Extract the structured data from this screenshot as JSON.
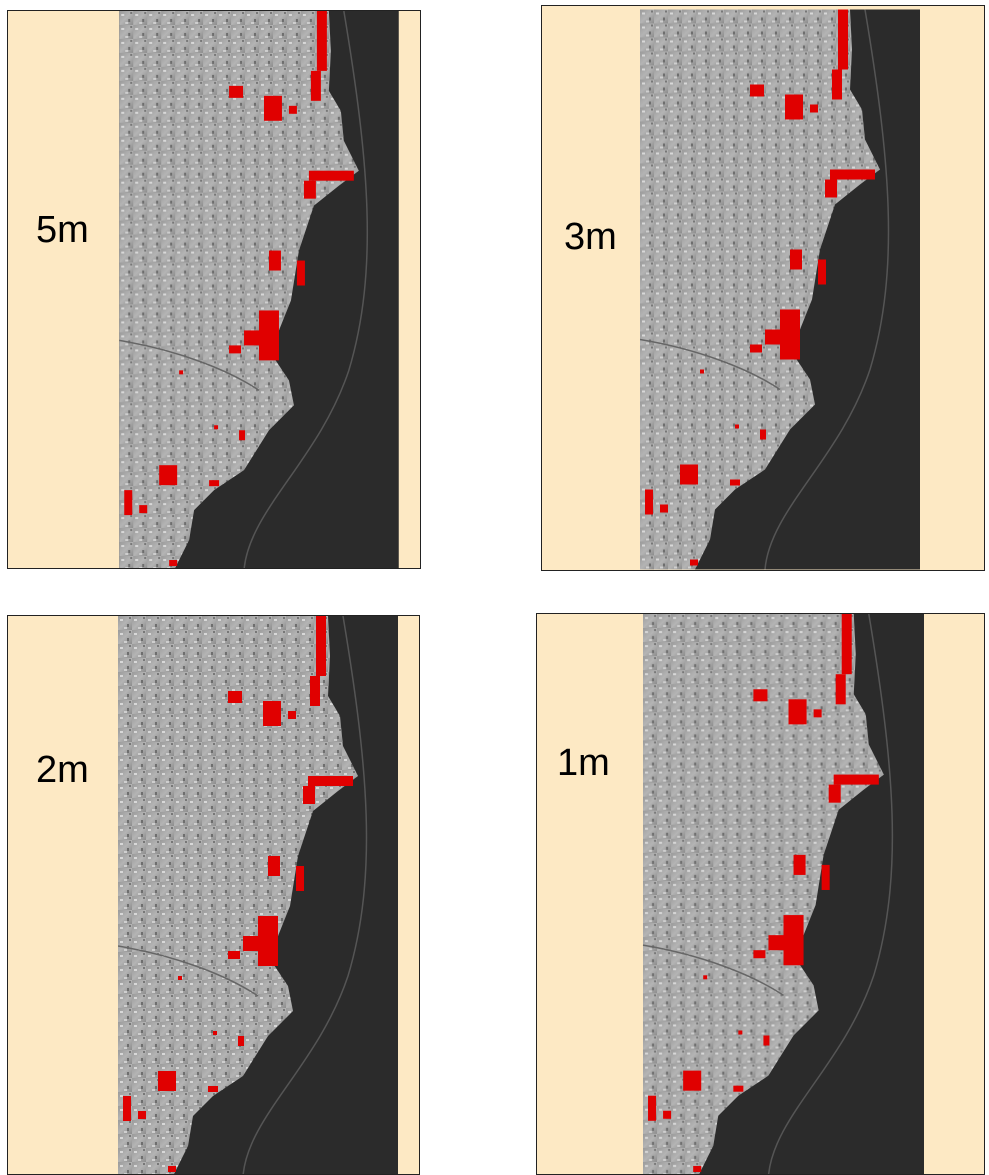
{
  "panels": [
    {
      "label": "5m"
    },
    {
      "label": "3m"
    },
    {
      "label": "2m"
    },
    {
      "label": "1m"
    }
  ]
}
